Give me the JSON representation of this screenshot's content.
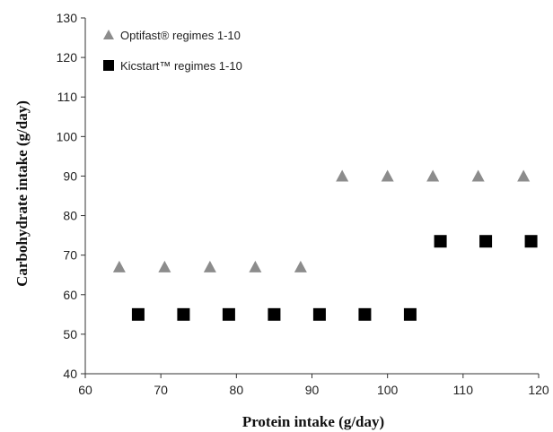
{
  "chart_data": {
    "type": "scatter",
    "xlabel": "Protein intake (g/day)",
    "ylabel": "Carbohydrate intake (g/day)",
    "xlim": [
      60,
      120
    ],
    "ylim": [
      40,
      130
    ],
    "xticks": [
      60,
      70,
      80,
      90,
      100,
      110,
      120
    ],
    "yticks": [
      40,
      50,
      60,
      70,
      80,
      90,
      100,
      110,
      120,
      130
    ],
    "grid": false,
    "legend_position": "top-left",
    "series": [
      {
        "name": "Optifast® regimes 1-10",
        "marker": "triangle",
        "color": "#8c8c8c",
        "points": [
          {
            "x": 64.5,
            "y": 67
          },
          {
            "x": 70.5,
            "y": 67
          },
          {
            "x": 76.5,
            "y": 67
          },
          {
            "x": 82.5,
            "y": 67
          },
          {
            "x": 88.5,
            "y": 67
          },
          {
            "x": 94,
            "y": 90
          },
          {
            "x": 100,
            "y": 90
          },
          {
            "x": 106,
            "y": 90
          },
          {
            "x": 112,
            "y": 90
          },
          {
            "x": 118,
            "y": 90
          }
        ]
      },
      {
        "name": "Kicstart™ regimes 1-10",
        "marker": "square",
        "color": "#000000",
        "points": [
          {
            "x": 67,
            "y": 55
          },
          {
            "x": 73,
            "y": 55
          },
          {
            "x": 79,
            "y": 55
          },
          {
            "x": 85,
            "y": 55
          },
          {
            "x": 91,
            "y": 55
          },
          {
            "x": 97,
            "y": 55
          },
          {
            "x": 103,
            "y": 55
          },
          {
            "x": 107,
            "y": 73.5
          },
          {
            "x": 113,
            "y": 73.5
          },
          {
            "x": 119,
            "y": 73.5
          }
        ]
      }
    ]
  }
}
